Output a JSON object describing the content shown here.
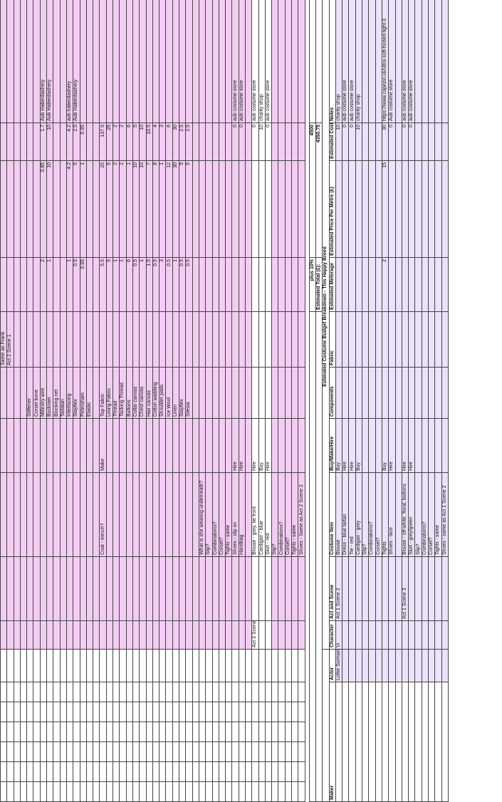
{
  "upper_rows": [
    {
      "b": "",
      "c": "",
      "d": "",
      "e": "",
      "f": "Same as Frank",
      "g": "",
      "h": "",
      "i": "",
      "j": ""
    },
    {
      "b": "",
      "c": "",
      "d": "",
      "e": "",
      "f": "Act 2 Scene 1",
      "g": "",
      "h": "",
      "i": "",
      "j": ""
    },
    {
      "b": "",
      "c": "",
      "d": "",
      "e": "",
      "f": "",
      "g": "",
      "h": "",
      "i": "",
      "j": ""
    },
    {
      "b": "",
      "c": "",
      "d": "",
      "e": "",
      "f": "",
      "g": "",
      "h": "",
      "i": "",
      "j": ""
    },
    {
      "b": "",
      "c": "",
      "d": "",
      "e": "Stiffener",
      "f": "",
      "g": "",
      "h": "",
      "i": "",
      "j": ""
    },
    {
      "b": "",
      "c": "",
      "d": "",
      "e": "Corset bone",
      "f": "",
      "g": "",
      "h": "",
      "i": "",
      "j": ""
    },
    {
      "b": "",
      "c": "",
      "d": "",
      "e": "Millinery wire",
      "f": "",
      "g": "2",
      "h": "0.85",
      "i": "1.7",
      "j": "Aub Haberdashery"
    },
    {
      "b": "",
      "c": "",
      "d": "",
      "e": "Buckram",
      "f": "",
      "g": "1",
      "h": "10",
      "i": "10",
      "j": "Aub Haberdashery"
    },
    {
      "b": "",
      "c": "",
      "d": "",
      "e": "Blocking net",
      "f": "",
      "g": "",
      "h": "",
      "i": "",
      "j": ""
    },
    {
      "b": "",
      "c": "",
      "d": "",
      "e": "Tarlatan",
      "f": "",
      "g": "",
      "h": "",
      "i": "",
      "j": ""
    },
    {
      "b": "",
      "c": "",
      "d": "",
      "e": "Interfacing",
      "f": "",
      "g": "1",
      "h": "4.2",
      "i": "4.2",
      "j": "aub haberdashery"
    },
    {
      "b": "",
      "c": "",
      "d": "",
      "e": "Stayflex",
      "f": "",
      "g": "0.5",
      "h": "5",
      "i": "2.5",
      "j": "Aub Haberdashery"
    },
    {
      "b": "",
      "c": "",
      "d": "",
      "e": "Petersham",
      "f": "",
      "g": "0.95",
      "h": "1",
      "i": "0.95",
      "j": ""
    },
    {
      "b": "",
      "c": "",
      "d": "",
      "e": "Elastic",
      "f": "",
      "g": "",
      "h": "",
      "i": "",
      "j": ""
    },
    {
      "b": "",
      "c": "",
      "d": "",
      "e": "",
      "f": "",
      "g": "",
      "h": "",
      "i": "",
      "j": ""
    },
    {
      "b": "Coat - trench?",
      "c": "Make",
      "d": "",
      "e": "Top Fabric",
      "f": "",
      "g": "5.5",
      "h": "25",
      "i": "137.5",
      "j": ""
    },
    {
      "b": "",
      "c": "",
      "d": "",
      "e": "Lining Fabric",
      "f": "",
      "g": "5",
      "h": "5",
      "i": "25",
      "j": ""
    },
    {
      "b": "",
      "c": "",
      "d": "",
      "e": "Thread",
      "f": "",
      "g": "1",
      "h": "2",
      "i": "2",
      "j": ""
    },
    {
      "b": "",
      "c": "",
      "d": "",
      "e": "Tacking Thread",
      "f": "",
      "g": "1",
      "h": "2",
      "i": "2",
      "j": ""
    },
    {
      "b": "",
      "c": "",
      "d": "",
      "e": "Buttons",
      "f": "",
      "g": "6",
      "h": "1",
      "i": "6",
      "j": ""
    },
    {
      "b": "",
      "c": "",
      "d": "",
      "e": "Collar canvas",
      "f": "",
      "g": "0.5",
      "h": "10",
      "i": "5",
      "j": ""
    },
    {
      "b": "",
      "c": "",
      "d": "",
      "e": "Chest canvas",
      "f": "",
      "g": "1",
      "h": "10",
      "i": "10",
      "j": ""
    },
    {
      "b": "",
      "c": "",
      "d": "",
      "e": "Hair canvas",
      "f": "",
      "g": "1.5",
      "h": "7",
      "i": "10.5",
      "j": ""
    },
    {
      "b": "",
      "c": "",
      "d": "",
      "e": "Cotton wadding",
      "f": "",
      "g": "0.5",
      "h": "8",
      "i": "4",
      "j": ""
    },
    {
      "b": "",
      "c": "",
      "d": "",
      "e": "Shoulder pads",
      "f": "",
      "g": "3",
      "h": "1",
      "i": "3",
      "j": ""
    },
    {
      "b": "",
      "c": "",
      "d": "",
      "e": "Ice Wool",
      "f": "",
      "g": "0.5",
      "h": "12",
      "i": "6",
      "j": ""
    },
    {
      "b": "",
      "c": "",
      "d": "",
      "e": "Linen",
      "f": "",
      "g": "1",
      "h": "30",
      "i": "30",
      "j": ""
    },
    {
      "b": "",
      "c": "",
      "d": "",
      "e": "Stayflex",
      "f": "",
      "g": "0.5",
      "h": "5",
      "i": "2.5",
      "j": ""
    },
    {
      "b": "",
      "c": "",
      "d": "",
      "e": "Silesia",
      "f": "",
      "g": "0.5",
      "h": "5",
      "i": "2.5",
      "j": ""
    },
    {
      "b": "",
      "c": "",
      "d": "",
      "e": "",
      "f": "",
      "g": "",
      "h": "",
      "i": "",
      "j": ""
    },
    {
      "b": "What is she wearing underneath?",
      "c": "",
      "d": "",
      "e": "",
      "f": "",
      "g": "",
      "h": "",
      "i": "",
      "j": "",
      "red": true
    },
    {
      "b": "Slip?",
      "c": "",
      "d": "",
      "e": "",
      "f": "",
      "g": "",
      "h": "",
      "i": "",
      "j": ""
    },
    {
      "b": "Combinations?",
      "c": "",
      "d": "",
      "e": "",
      "f": "",
      "g": "",
      "h": "",
      "i": "",
      "j": ""
    },
    {
      "b": "Corset?",
      "c": "",
      "d": "",
      "e": "",
      "f": "",
      "g": "",
      "h": "",
      "i": "",
      "j": ""
    },
    {
      "b": "Tights - same",
      "c": "",
      "d": "",
      "e": "",
      "f": "",
      "g": "",
      "h": "",
      "i": "",
      "j": ""
    },
    {
      "b": "Shoes - slip on",
      "c": "Hire",
      "d": "",
      "e": "",
      "f": "",
      "g": "",
      "h": "",
      "i": "0",
      "j": "aub costume store"
    },
    {
      "b": "Handbag",
      "c": "Hire",
      "d": "",
      "e": "",
      "f": "",
      "g": "",
      "h": "",
      "i": "0",
      "j": "aub costume store"
    },
    {
      "b": "",
      "c": "",
      "d": "",
      "e": "",
      "f": "",
      "g": "",
      "h": "",
      "i": "",
      "j": ""
    },
    {
      "a": "Act 3 Scene 1",
      "b": "Blouse - grey, tie front",
      "c": "Hire",
      "d": "",
      "e": "",
      "f": "",
      "g": "",
      "h": "",
      "i": "0",
      "j": "aub costume store",
      "white": true
    },
    {
      "b": "Cardigan - blue",
      "c": "Buy",
      "d": "",
      "e": "",
      "f": "",
      "g": "",
      "h": "",
      "i": "10",
      "j": "charity shop",
      "white": true
    },
    {
      "b": "Skirt - red",
      "c": "Hire",
      "d": "",
      "e": "",
      "f": "",
      "g": "",
      "h": "",
      "i": "0",
      "j": "aub costume store",
      "white": true
    },
    {
      "b": "Slip?",
      "c": "",
      "d": "",
      "e": "",
      "f": "",
      "g": "",
      "h": "",
      "i": "",
      "j": ""
    },
    {
      "b": "Combinations?",
      "c": "",
      "d": "",
      "e": "",
      "f": "",
      "g": "",
      "h": "",
      "i": "",
      "j": ""
    },
    {
      "b": "Corset?",
      "c": "",
      "d": "",
      "e": "",
      "f": "",
      "g": "",
      "h": "",
      "i": "",
      "j": ""
    },
    {
      "b": "Tights - same",
      "c": "",
      "d": "",
      "e": "",
      "f": "",
      "g": "",
      "h": "",
      "i": "",
      "j": ""
    },
    {
      "b": "Shoes - Same as Act 2 Scene 2",
      "c": "",
      "d": "",
      "e": "",
      "f": "",
      "g": "",
      "h": "",
      "i": "",
      "j": ""
    }
  ],
  "summary": {
    "plus_label": "plus 10%",
    "plus_value": "4500",
    "total_label": "Estimated Total (£):",
    "total_value": "4350.75"
  },
  "header": {
    "title": "Estimated Costume Budget Breakdown - This Happy Breed",
    "columns": [
      "Maker",
      "Actor",
      "Character",
      "Act and Scene",
      "Costume Item",
      "Buy/Make/Hire",
      "Components",
      "Fabric",
      "Estimated Meterage",
      "Estimated Price Per Metre (£)",
      "Estimated Cost (£)",
      "Notes"
    ]
  },
  "lower_rows": [
    {
      "actor": "Lottie Surman",
      "character": "Vi",
      "act": "Act 1 Scene 2",
      "item": "Blouse",
      "bmh": "Buy",
      "meter": "",
      "price": "",
      "cost": "10",
      "notes": "charity shop"
    },
    {
      "actor": "",
      "character": "",
      "act": "",
      "item": "Dress - blue tartan",
      "bmh": "Hire",
      "meter": "",
      "price": "",
      "cost": "0",
      "notes": "aub costume store"
    },
    {
      "actor": "",
      "character": "",
      "act": "",
      "item": "Tie - red",
      "bmh": "Hire",
      "meter": "",
      "price": "",
      "cost": "0",
      "notes": "aub costume store"
    },
    {
      "actor": "",
      "character": "",
      "act": "",
      "item": "Cardigan - grey",
      "bmh": "Buy",
      "meter": "",
      "price": "",
      "cost": "10",
      "notes": "charity shop"
    },
    {
      "actor": "",
      "character": "",
      "act": "",
      "item": "Slip?",
      "bmh": "",
      "meter": "",
      "price": "",
      "cost": "",
      "notes": ""
    },
    {
      "actor": "",
      "character": "",
      "act": "",
      "item": "Combinations?",
      "bmh": "",
      "meter": "",
      "price": "",
      "cost": "",
      "notes": ""
    },
    {
      "actor": "",
      "character": "",
      "act": "",
      "item": "Corset?",
      "bmh": "",
      "meter": "",
      "price": "",
      "cost": "",
      "notes": ""
    },
    {
      "actor": "",
      "character": "",
      "act": "",
      "item": "Tights",
      "bmh": "Buy",
      "meter": "2",
      "price": "15",
      "cost": "30",
      "notes": "https://www.capezio.uk/ultra-soft-footed-tight-3"
    },
    {
      "actor": "",
      "character": "",
      "act": "",
      "item": "Shoes - lace",
      "bmh": "Hire",
      "meter": "",
      "price": "",
      "cost": "0",
      "notes": "Aub costume store"
    },
    {
      "actor": "",
      "character": "",
      "act": "",
      "item": "",
      "bmh": "",
      "meter": "",
      "price": "",
      "cost": "",
      "notes": ""
    },
    {
      "actor": "",
      "character": "",
      "act": "Act 1 Scene 3",
      "item": "Blouse - off-white, floral, buttons",
      "bmh": "Hire",
      "meter": "",
      "price": "",
      "cost": "0",
      "notes": "aub costume store"
    },
    {
      "actor": "",
      "character": "",
      "act": "",
      "item": "Skirt - grey/green",
      "bmh": "Hire",
      "meter": "",
      "price": "",
      "cost": "0",
      "notes": "aub costume store"
    },
    {
      "actor": "",
      "character": "",
      "act": "",
      "item": "Slip?",
      "bmh": "",
      "meter": "",
      "price": "",
      "cost": "",
      "notes": ""
    },
    {
      "actor": "",
      "character": "",
      "act": "",
      "item": "Combinations?",
      "bmh": "",
      "meter": "",
      "price": "",
      "cost": "",
      "notes": ""
    },
    {
      "actor": "",
      "character": "",
      "act": "",
      "item": "Corset?",
      "bmh": "",
      "meter": "",
      "price": "",
      "cost": "",
      "notes": ""
    },
    {
      "actor": "",
      "character": "",
      "act": "",
      "item": "Tights - same",
      "bmh": "",
      "meter": "",
      "price": "",
      "cost": "",
      "notes": ""
    },
    {
      "actor": "",
      "character": "",
      "act": "",
      "item": "Shoes - same as Act 1 Scene 2",
      "bmh": "",
      "meter": "",
      "price": "",
      "cost": "",
      "notes": ""
    }
  ]
}
